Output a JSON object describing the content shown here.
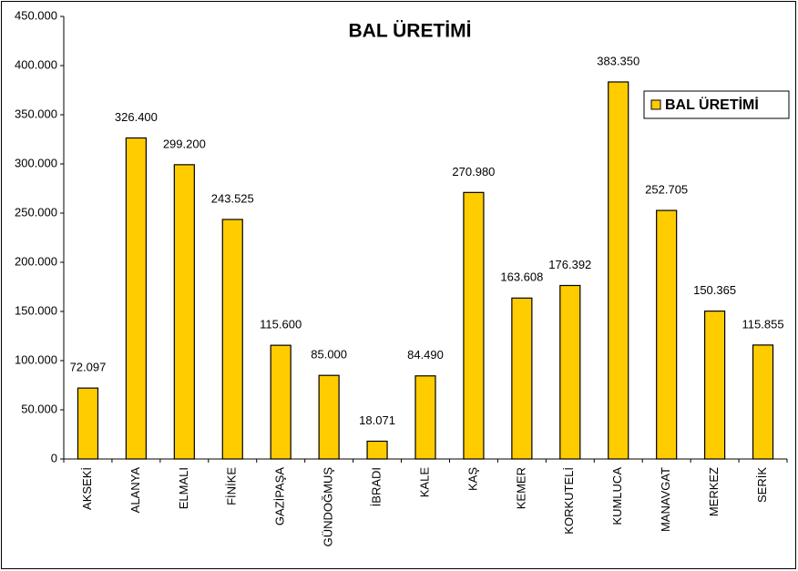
{
  "chart_data": {
    "type": "bar",
    "title": "BAL ÜRETİMİ",
    "categories": [
      "AKSEKİ",
      "ALANYA",
      "ELMALI",
      "FİNİKE",
      "GAZİPAŞA",
      "GÜNDOĞMUŞ",
      "İBRADI",
      "KALE",
      "KAŞ",
      "KEMER",
      "KORKUTELİ",
      "KUMLUCA",
      "MANAVGAT",
      "MERKEZ",
      "SERİK"
    ],
    "series": [
      {
        "name": "BAL ÜRETİMİ",
        "color": "#ffcc00",
        "values": [
          72097,
          326400,
          299200,
          243525,
          115600,
          85000,
          18071,
          84490,
          270980,
          163608,
          176392,
          383350,
          252705,
          150365,
          115855
        ],
        "value_labels": [
          "72.097",
          "326.400",
          "299.200",
          "243.525",
          "115.600",
          "85.000",
          "18.071",
          "84.490",
          "270.980",
          "163.608",
          "176.392",
          "383.350",
          "252.705",
          "150.365",
          "115.855"
        ]
      }
    ],
    "ylim": [
      0,
      450000
    ],
    "yticks": [
      0,
      {
        "value": 50000,
        "label": "50.000"
      },
      {
        "value": 100000,
        "label": "100.000"
      },
      {
        "value": 150000,
        "label": "150.000"
      },
      {
        "value": 200000,
        "label": "200.000"
      },
      {
        "value": 250000,
        "label": "250.000"
      },
      {
        "value": 300000,
        "label": "300.000"
      },
      {
        "value": 350000,
        "label": "350.000"
      },
      {
        "value": 400000,
        "label": "400.000"
      },
      {
        "value": 450000,
        "label": "450.000"
      }
    ],
    "legend": "right"
  }
}
